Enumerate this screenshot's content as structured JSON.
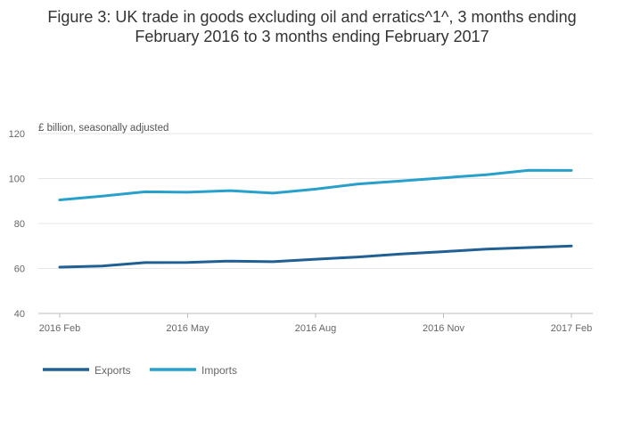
{
  "title_line1": "Figure 3: UK trade in goods excluding oil and erratics^1^, 3 months ending",
  "title_line2": "February 2016 to 3 months ending February 2017",
  "chart_data": {
    "type": "line",
    "title": "Figure 3: UK trade in goods excluding oil and erratics^1^, 3 months ending February 2016 to 3 months ending February 2017",
    "ylabel": "£ billion, seasonally adjusted",
    "xlabel": "",
    "categories": [
      "2016 Feb",
      "2016 Mar",
      "2016 Apr",
      "2016 May",
      "2016 Jun",
      "2016 Jul",
      "2016 Aug",
      "2016 Sep",
      "2016 Oct",
      "2016 Nov",
      "2016 Dec",
      "2017 Jan",
      "2017 Feb"
    ],
    "x_tick_labels": [
      "2016 Feb",
      "2016 May",
      "2016 Aug",
      "2016 Nov",
      "2017 Feb"
    ],
    "x_tick_indices": [
      0,
      3,
      6,
      9,
      12
    ],
    "ylim": [
      40,
      120
    ],
    "y_ticks": [
      40,
      60,
      80,
      100,
      120
    ],
    "grid": true,
    "legend_position": "bottom-left",
    "series": [
      {
        "name": "Exports",
        "color": "#206095",
        "values": [
          60.6,
          61.1,
          62.6,
          62.7,
          63.3,
          63.0,
          64.1,
          65.1,
          66.4,
          67.5,
          68.6,
          69.3,
          70.0
        ]
      },
      {
        "name": "Imports",
        "color": "#27a0cc",
        "values": [
          90.5,
          92.2,
          94.1,
          93.9,
          94.6,
          93.5,
          95.3,
          97.6,
          98.9,
          100.3,
          101.7,
          103.7,
          103.6
        ]
      }
    ]
  }
}
